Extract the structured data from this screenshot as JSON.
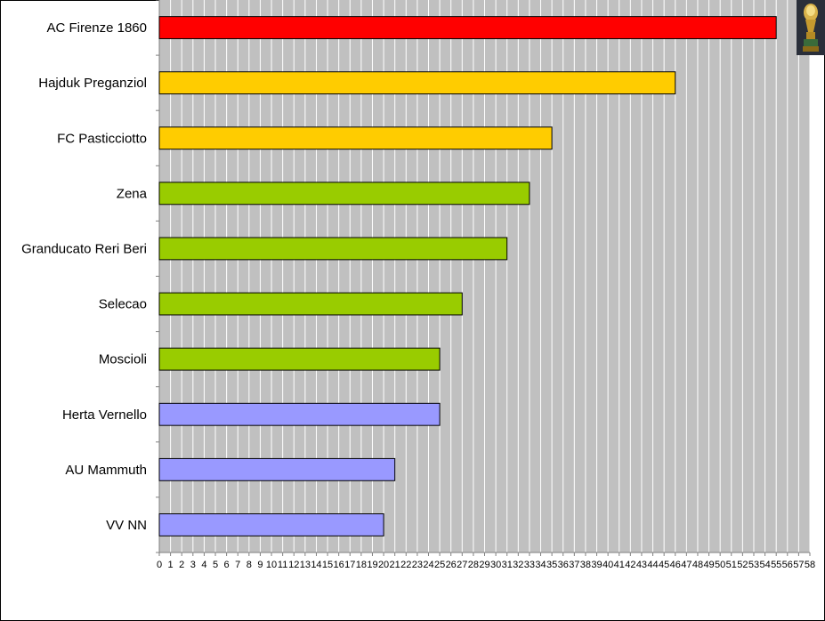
{
  "chart_data": {
    "type": "bar",
    "orientation": "horizontal",
    "categories": [
      "AC Firenze 1860",
      "Hajduk Preganziol",
      "FC Pasticciotto",
      "Zena",
      "Granducato Reri Beri",
      "Selecao",
      "Moscioli",
      "Herta Vernello",
      "AU Mammuth",
      "VV NN"
    ],
    "values": [
      55,
      46,
      35,
      33,
      31,
      27,
      25,
      25,
      21,
      20
    ],
    "colors": [
      "#ff0000",
      "#ffcc00",
      "#ffcc00",
      "#99cc00",
      "#99cc00",
      "#99cc00",
      "#99cc00",
      "#9999ff",
      "#9999ff",
      "#9999ff"
    ],
    "xlim": [
      0,
      58
    ],
    "xticks": [
      "0",
      "1",
      "2",
      "3",
      "4",
      "5",
      "6",
      "7",
      "8",
      "9",
      "10",
      "11",
      "12",
      "13",
      "14",
      "15",
      "16",
      "17",
      "18",
      "19",
      "20",
      "21",
      "22",
      "23",
      "24",
      "25",
      "26",
      "27",
      "28",
      "29",
      "30",
      "31",
      "32",
      "33",
      "34",
      "35",
      "36",
      "37",
      "38",
      "39",
      "40",
      "41",
      "42",
      "43",
      "44",
      "45",
      "46",
      "47",
      "48",
      "49",
      "50",
      "51",
      "52",
      "53",
      "54",
      "55",
      "56",
      "57",
      "58"
    ],
    "grid": true,
    "plot_background": "#c0c0c0",
    "gridline_color": "#ffffff",
    "title": "",
    "xlabel": "",
    "ylabel": ""
  },
  "decoration": {
    "icon": "trophy-icon"
  }
}
